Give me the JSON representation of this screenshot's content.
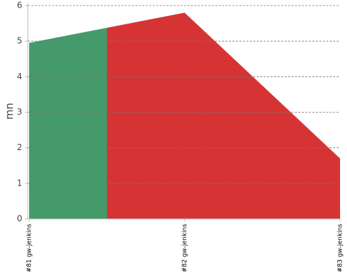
{
  "chart_data": {
    "type": "area",
    "y_label": "mn",
    "categories": [
      "#81 gw-jenkins",
      "#82 gw-jenkins",
      "#83 gw-jenkins"
    ],
    "values": [
      4.95,
      5.8,
      1.7
    ],
    "colors": [
      "#449a6a",
      "#d63434",
      "#d63434"
    ],
    "ylim": [
      0,
      6
    ],
    "yticks": [
      0,
      1,
      2,
      3,
      4,
      5,
      6
    ],
    "grid": true
  }
}
